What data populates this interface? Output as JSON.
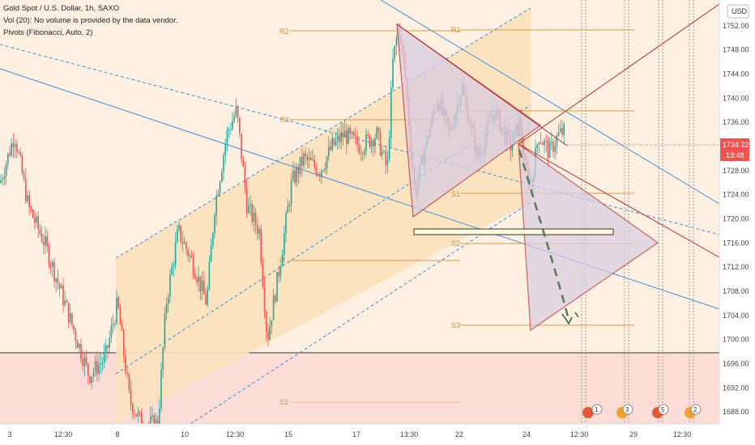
{
  "header": {
    "line1": "Gold Spot / U.S. Dollar, 1h, SAXO",
    "line2": "Vol (20): No volume is provided by the data vendor.",
    "line3": "Pivots (Fibonacci, Auto, 2)"
  },
  "currency_badge": "USD",
  "price_tag": {
    "value": "1734.22",
    "countdown": "13:48"
  },
  "pivot_labels": [
    "R2",
    "R1",
    "R1",
    "P",
    "S1",
    "S2",
    "S3",
    "S1"
  ],
  "event_badges": [
    "1",
    "3",
    "5",
    "2"
  ],
  "colors": {
    "candle_up": "#26a69a",
    "candle_down": "#ef5350",
    "channel_fill": "#fbe5c8",
    "support_zone": "#fbdcd6",
    "triangle_fill": "#d9cde3",
    "pivot_line": "#d69a49",
    "trend_blue": "#3d8fdc",
    "trend_red": "#b22a2a",
    "price_tag": "#ef5350"
  },
  "chart_data": {
    "type": "candlestick",
    "symbol": "Gold Spot / U.S. Dollar",
    "interval": "1h",
    "ylim": [
      1686,
      1756
    ],
    "y_ticks": [
      "1752.00",
      "1748.00",
      "1744.00",
      "1740.00",
      "1736.00",
      "1732.00",
      "1728.00",
      "1724.00",
      "1720.00",
      "1716.00",
      "1712.00",
      "1708.00",
      "1704.00",
      "1700.00",
      "1696.00",
      "1692.00",
      "1688.00"
    ],
    "x_ticks": [
      "3",
      "12:30",
      "8",
      "10",
      "12:30",
      "15",
      "17",
      "13:30",
      "22",
      "24",
      "12:30",
      "29",
      "12:30"
    ],
    "last_price": 1734.22,
    "pivots_recent": {
      "R1": 1753.5,
      "S1": 1726.3,
      "S2": 1718.2,
      "S3": 1703.9
    },
    "pivots_previous": {
      "R2": 1753.5,
      "R1": 1737.5,
      "P": 1714.7,
      "S1": 1690.6
    },
    "support_line": 1699.0,
    "range_box": [
      1719.0,
      1720.3
    ]
  }
}
